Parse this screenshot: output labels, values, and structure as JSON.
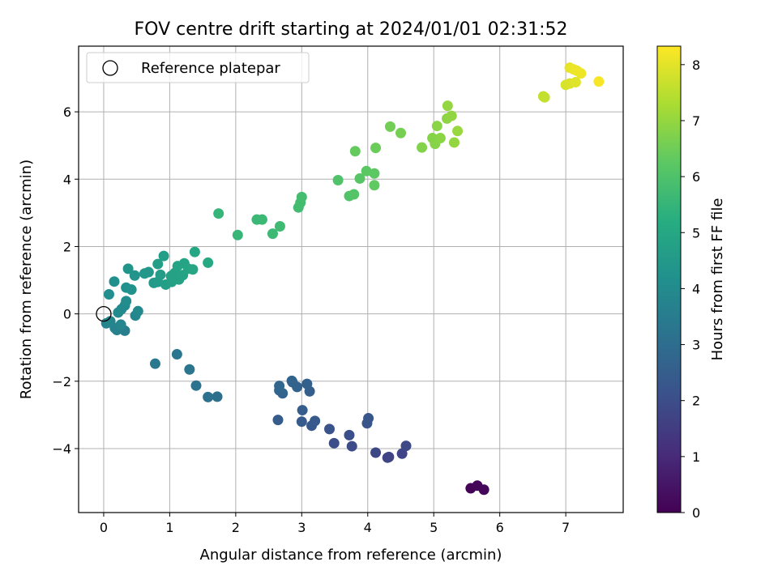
{
  "chart_data": {
    "type": "scatter",
    "title": "FOV centre drift starting at 2024/01/01 02:31:52",
    "xlabel": "Angular distance from reference (arcmin)",
    "ylabel": "Rotation from reference (arcmin)",
    "xlim": [
      -0.38,
      7.87
    ],
    "ylim": [
      -5.9,
      7.95
    ],
    "xticks": [
      0,
      1,
      2,
      3,
      4,
      5,
      6,
      7
    ],
    "yticks": [
      -4,
      -2,
      0,
      2,
      4,
      6
    ],
    "grid": true,
    "legend": {
      "location": "upper-left",
      "entries": [
        "Reference platepar"
      ]
    },
    "reference_point": {
      "x": 0,
      "y": 0
    },
    "colorbar": {
      "label": "Hours from first FF file",
      "colormap": "viridis",
      "range": [
        0,
        8.33
      ],
      "ticks": [
        0,
        1,
        2,
        3,
        4,
        5,
        6,
        7,
        8
      ]
    },
    "points": [
      {
        "x": 5.56,
        "y": -5.18,
        "c": 0.05
      },
      {
        "x": 5.66,
        "y": -5.1,
        "c": 0.1
      },
      {
        "x": 5.76,
        "y": -5.22,
        "c": 0.15
      },
      {
        "x": 4.3,
        "y": -4.27,
        "c": 1.7
      },
      {
        "x": 4.32,
        "y": -4.25,
        "c": 1.72
      },
      {
        "x": 4.12,
        "y": -4.12,
        "c": 1.8
      },
      {
        "x": 4.52,
        "y": -4.15,
        "c": 1.75
      },
      {
        "x": 4.58,
        "y": -3.92,
        "c": 1.85
      },
      {
        "x": 3.76,
        "y": -3.93,
        "c": 1.95
      },
      {
        "x": 3.49,
        "y": -3.84,
        "c": 2.0
      },
      {
        "x": 3.72,
        "y": -3.6,
        "c": 2.05
      },
      {
        "x": 3.42,
        "y": -3.42,
        "c": 2.15
      },
      {
        "x": 3.99,
        "y": -3.25,
        "c": 2.2
      },
      {
        "x": 4.01,
        "y": -3.1,
        "c": 2.25
      },
      {
        "x": 3.15,
        "y": -3.32,
        "c": 2.3
      },
      {
        "x": 3.2,
        "y": -3.18,
        "c": 2.35
      },
      {
        "x": 3.0,
        "y": -3.2,
        "c": 2.4
      },
      {
        "x": 2.64,
        "y": -3.15,
        "c": 2.45
      },
      {
        "x": 3.01,
        "y": -2.86,
        "c": 2.5
      },
      {
        "x": 3.12,
        "y": -2.3,
        "c": 2.55
      },
      {
        "x": 3.08,
        "y": -2.08,
        "c": 2.6
      },
      {
        "x": 2.93,
        "y": -2.17,
        "c": 2.62
      },
      {
        "x": 2.86,
        "y": -2.03,
        "c": 2.65
      },
      {
        "x": 2.85,
        "y": -1.99,
        "c": 2.68
      },
      {
        "x": 2.71,
        "y": -2.36,
        "c": 2.7
      },
      {
        "x": 2.66,
        "y": -2.27,
        "c": 2.72
      },
      {
        "x": 2.66,
        "y": -2.14,
        "c": 2.75
      },
      {
        "x": 1.72,
        "y": -2.46,
        "c": 3.1
      },
      {
        "x": 1.58,
        "y": -2.47,
        "c": 3.15
      },
      {
        "x": 1.4,
        "y": -2.13,
        "c": 3.2
      },
      {
        "x": 1.3,
        "y": -1.65,
        "c": 3.25
      },
      {
        "x": 1.11,
        "y": -1.2,
        "c": 3.3
      },
      {
        "x": 0.78,
        "y": -1.48,
        "c": 3.35
      },
      {
        "x": 0.32,
        "y": -0.5,
        "c": 3.6
      },
      {
        "x": 0.2,
        "y": -0.48,
        "c": 3.65
      },
      {
        "x": 0.17,
        "y": -0.42,
        "c": 3.7
      },
      {
        "x": 0.04,
        "y": -0.28,
        "c": 3.75
      },
      {
        "x": 0.1,
        "y": -0.22,
        "c": 3.8
      },
      {
        "x": 0.26,
        "y": -0.32,
        "c": 3.82
      },
      {
        "x": 0.48,
        "y": -0.05,
        "c": 3.85
      },
      {
        "x": 0.52,
        "y": 0.08,
        "c": 3.9
      },
      {
        "x": 0.27,
        "y": 0.14,
        "c": 3.95
      },
      {
        "x": 0.22,
        "y": 0.04,
        "c": 3.98
      },
      {
        "x": 0.32,
        "y": 0.25,
        "c": 4.0
      },
      {
        "x": 0.34,
        "y": 0.38,
        "c": 4.02
      },
      {
        "x": 0.08,
        "y": 0.58,
        "c": 4.1
      },
      {
        "x": 0.16,
        "y": 0.96,
        "c": 4.15
      },
      {
        "x": 0.34,
        "y": 0.78,
        "c": 4.2
      },
      {
        "x": 0.42,
        "y": 0.72,
        "c": 4.25
      },
      {
        "x": 0.47,
        "y": 1.14,
        "c": 4.3
      },
      {
        "x": 0.37,
        "y": 1.34,
        "c": 4.35
      },
      {
        "x": 0.62,
        "y": 1.2,
        "c": 4.4
      },
      {
        "x": 0.68,
        "y": 1.24,
        "c": 4.45
      },
      {
        "x": 0.76,
        "y": 0.92,
        "c": 4.5
      },
      {
        "x": 0.82,
        "y": 0.95,
        "c": 4.55
      },
      {
        "x": 0.86,
        "y": 1.16,
        "c": 4.6
      },
      {
        "x": 0.82,
        "y": 1.48,
        "c": 4.65
      },
      {
        "x": 0.91,
        "y": 1.72,
        "c": 4.7
      },
      {
        "x": 0.94,
        "y": 0.87,
        "c": 4.72
      },
      {
        "x": 1.03,
        "y": 0.95,
        "c": 4.75
      },
      {
        "x": 1.02,
        "y": 1.12,
        "c": 4.78
      },
      {
        "x": 1.08,
        "y": 1.22,
        "c": 4.8
      },
      {
        "x": 1.14,
        "y": 1.02,
        "c": 4.82
      },
      {
        "x": 1.12,
        "y": 1.42,
        "c": 4.85
      },
      {
        "x": 1.2,
        "y": 1.15,
        "c": 4.88
      },
      {
        "x": 1.22,
        "y": 1.5,
        "c": 4.9
      },
      {
        "x": 1.28,
        "y": 1.34,
        "c": 4.92
      },
      {
        "x": 1.35,
        "y": 1.32,
        "c": 4.95
      },
      {
        "x": 1.38,
        "y": 1.84,
        "c": 5.0
      },
      {
        "x": 1.58,
        "y": 1.52,
        "c": 5.05
      },
      {
        "x": 1.74,
        "y": 2.98,
        "c": 5.5
      },
      {
        "x": 2.03,
        "y": 2.34,
        "c": 5.55
      },
      {
        "x": 2.32,
        "y": 2.8,
        "c": 5.6
      },
      {
        "x": 2.4,
        "y": 2.8,
        "c": 5.62
      },
      {
        "x": 2.56,
        "y": 2.38,
        "c": 5.65
      },
      {
        "x": 2.67,
        "y": 2.6,
        "c": 5.7
      },
      {
        "x": 2.95,
        "y": 3.16,
        "c": 5.75
      },
      {
        "x": 2.98,
        "y": 3.3,
        "c": 5.78
      },
      {
        "x": 3.0,
        "y": 3.47,
        "c": 5.8
      },
      {
        "x": 3.55,
        "y": 3.97,
        "c": 6.0
      },
      {
        "x": 3.72,
        "y": 3.5,
        "c": 6.05
      },
      {
        "x": 3.79,
        "y": 3.55,
        "c": 6.1
      },
      {
        "x": 3.88,
        "y": 4.02,
        "c": 6.15
      },
      {
        "x": 3.98,
        "y": 4.24,
        "c": 6.2
      },
      {
        "x": 4.1,
        "y": 4.17,
        "c": 6.25
      },
      {
        "x": 4.1,
        "y": 3.82,
        "c": 6.3
      },
      {
        "x": 3.81,
        "y": 4.83,
        "c": 6.35
      },
      {
        "x": 4.12,
        "y": 4.93,
        "c": 6.45
      },
      {
        "x": 4.34,
        "y": 5.56,
        "c": 6.55
      },
      {
        "x": 4.5,
        "y": 5.37,
        "c": 6.6
      },
      {
        "x": 4.82,
        "y": 4.94,
        "c": 6.75
      },
      {
        "x": 4.98,
        "y": 5.22,
        "c": 6.8
      },
      {
        "x": 5.02,
        "y": 5.05,
        "c": 6.82
      },
      {
        "x": 5.05,
        "y": 5.58,
        "c": 6.85
      },
      {
        "x": 5.1,
        "y": 5.22,
        "c": 6.88
      },
      {
        "x": 5.2,
        "y": 5.8,
        "c": 6.9
      },
      {
        "x": 5.27,
        "y": 5.88,
        "c": 6.95
      },
      {
        "x": 5.21,
        "y": 6.18,
        "c": 6.98
      },
      {
        "x": 5.31,
        "y": 5.09,
        "c": 7.0
      },
      {
        "x": 5.36,
        "y": 5.43,
        "c": 7.05
      },
      {
        "x": 6.66,
        "y": 6.46,
        "c": 7.6
      },
      {
        "x": 6.68,
        "y": 6.43,
        "c": 7.62
      },
      {
        "x": 7.0,
        "y": 6.8,
        "c": 7.85
      },
      {
        "x": 7.06,
        "y": 6.84,
        "c": 7.9
      },
      {
        "x": 7.15,
        "y": 6.88,
        "c": 7.95
      },
      {
        "x": 7.06,
        "y": 7.31,
        "c": 8.05
      },
      {
        "x": 7.12,
        "y": 7.26,
        "c": 8.1
      },
      {
        "x": 7.17,
        "y": 7.22,
        "c": 8.12
      },
      {
        "x": 7.23,
        "y": 7.14,
        "c": 8.15
      },
      {
        "x": 7.5,
        "y": 6.9,
        "c": 8.25
      }
    ]
  }
}
